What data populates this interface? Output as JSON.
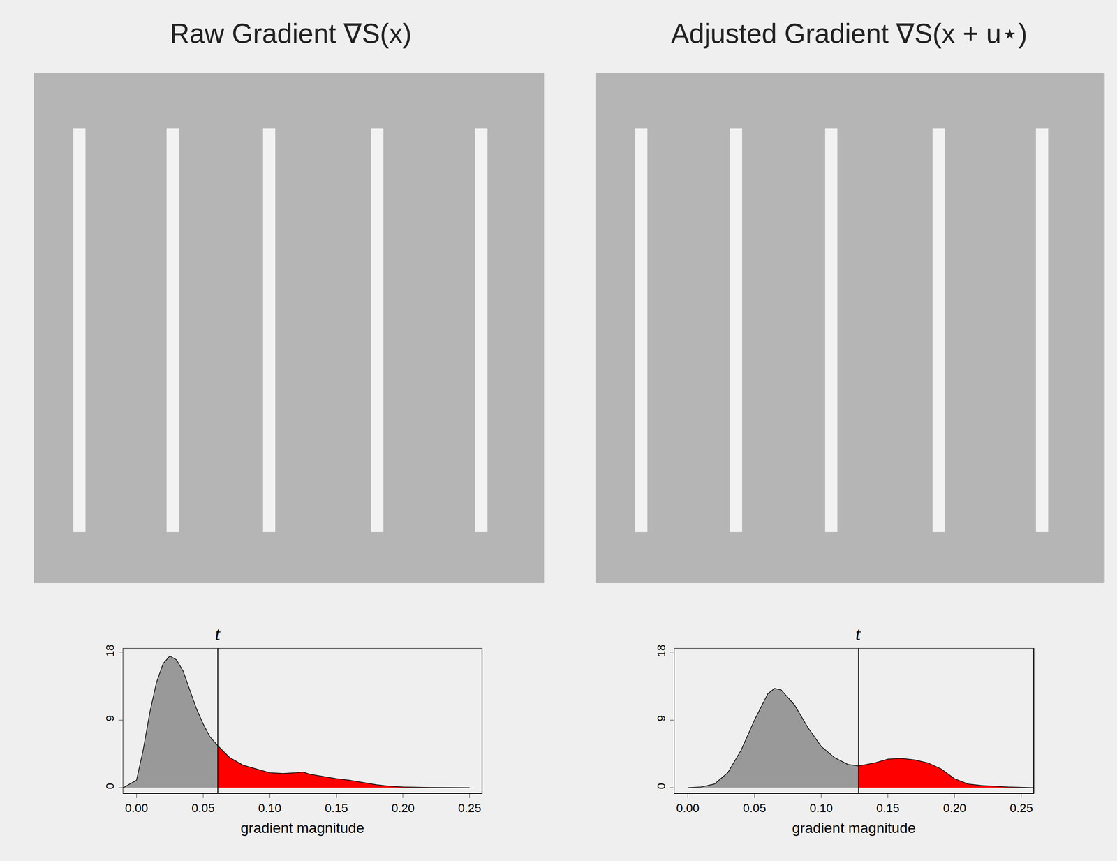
{
  "chart_data": [
    {
      "type": "image",
      "title": "Raw Gradient ∇S(x)",
      "stripes": {
        "x": [
          0.089,
          0.272,
          0.461,
          0.673,
          0.877
        ],
        "top": 0.11,
        "bottom": 0.9
      }
    },
    {
      "type": "image",
      "title": "Adjusted Gradient ∇S(x + u⋆)",
      "stripes": {
        "x": [
          0.09,
          0.276,
          0.463,
          0.674,
          0.877
        ],
        "top": 0.11,
        "bottom": 0.9
      }
    },
    {
      "type": "area",
      "xlabel": "gradient magnitude",
      "threshold": {
        "value": 0.061,
        "label": "t"
      },
      "x": [
        -0.01,
        0.0,
        0.005,
        0.01,
        0.015,
        0.02,
        0.025,
        0.03,
        0.035,
        0.04,
        0.045,
        0.05,
        0.055,
        0.061,
        0.07,
        0.08,
        0.09,
        0.1,
        0.11,
        0.12,
        0.125,
        0.13,
        0.14,
        0.15,
        0.16,
        0.17,
        0.18,
        0.19,
        0.2,
        0.22,
        0.25
      ],
      "values": [
        0,
        1,
        5,
        10,
        14,
        16.5,
        17.5,
        17,
        15.5,
        13,
        10.5,
        8.5,
        6.8,
        5.6,
        4,
        3,
        2.5,
        2,
        1.9,
        2,
        2.1,
        1.8,
        1.5,
        1.2,
        1,
        0.7,
        0.4,
        0.2,
        0.1,
        0.03,
        0
      ],
      "colors": [
        "#999999",
        "#ff0000"
      ],
      "xlim": [
        -0.01,
        0.259
      ],
      "ylim": [
        -0.7,
        18.5
      ],
      "xticks": [
        {
          "value": 0,
          "label": "0.00"
        },
        0.05,
        {
          "value": 0.1,
          "label": "0.10"
        },
        0.15,
        {
          "value": 0.2,
          "label": "0.20"
        },
        0.25
      ],
      "yticks": [
        0,
        9,
        18
      ]
    },
    {
      "type": "area",
      "xlabel": "gradient magnitude",
      "threshold": {
        "value": 0.128,
        "label": "t"
      },
      "x": [
        0.0,
        0.01,
        0.02,
        0.03,
        0.04,
        0.05,
        0.06,
        0.065,
        0.07,
        0.08,
        0.09,
        0.1,
        0.11,
        0.12,
        0.128,
        0.14,
        0.15,
        0.16,
        0.17,
        0.18,
        0.19,
        0.2,
        0.21,
        0.22,
        0.24,
        0.259
      ],
      "values": [
        0,
        0.1,
        0.5,
        2,
        5,
        9,
        12.5,
        13.2,
        13,
        11,
        8,
        5.5,
        4,
        3.1,
        2.9,
        3.3,
        3.8,
        3.9,
        3.7,
        3.3,
        2.5,
        1.2,
        0.5,
        0.3,
        0.1,
        0
      ],
      "colors": [
        "#999999",
        "#ff0000"
      ],
      "xlim": [
        -0.01,
        0.259
      ],
      "ylim": [
        -0.7,
        18.5
      ],
      "xticks": [
        {
          "value": 0,
          "label": "0.00"
        },
        0.05,
        {
          "value": 0.1,
          "label": "0.10"
        },
        0.15,
        {
          "value": 0.2,
          "label": "0.20"
        },
        0.25
      ],
      "yticks": [
        0,
        9,
        18
      ]
    }
  ]
}
